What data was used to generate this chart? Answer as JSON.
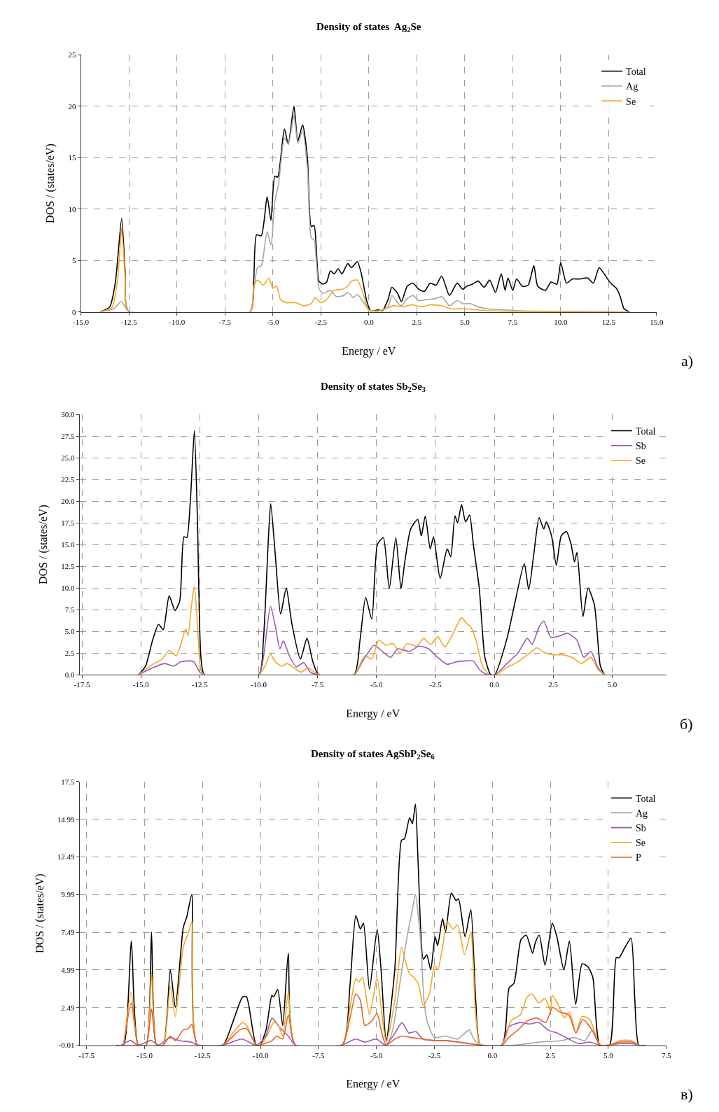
{
  "chart_data": [
    {
      "type": "line",
      "title": "Density of states  Ag$_{2}$Se",
      "xlabel": "Energy / eV",
      "ylabel": "DOS / (states/eV)",
      "annotations": [
        "а)"
      ],
      "grid": true,
      "legend": "top right",
      "xlim": [
        -15,
        15
      ],
      "xticks": [
        {
          "value": -15,
          "label": "-15.0"
        },
        {
          "value": -12.5,
          "label": "-12.5"
        },
        {
          "value": -10,
          "label": "-10.0"
        },
        {
          "value": -7.5,
          "label": "-7.5"
        },
        {
          "value": -5,
          "label": "-5.0"
        },
        {
          "value": -2.5,
          "label": "-2.5"
        },
        {
          "value": 0,
          "label": "0.0"
        },
        {
          "value": 2.5,
          "label": "2.5"
        },
        {
          "value": 5,
          "label": "5.0"
        },
        {
          "value": 7.5,
          "label": "7.5"
        },
        {
          "value": 10,
          "label": "10.0"
        },
        {
          "value": 12.5,
          "label": "12.5"
        },
        {
          "value": 15,
          "label": "15.0"
        }
      ],
      "ylim": [
        0,
        25
      ],
      "yticks": [
        0,
        5,
        10,
        15,
        20,
        25
      ],
      "series": [
        {
          "name": "Total",
          "color": "#000000",
          "x": [
            -14,
            -13.5,
            -13.2,
            -12.88,
            -12.7,
            -12.5,
            -6.2,
            -6.0,
            -5.85,
            -5.6,
            -5.3,
            -5.1,
            -4.9,
            -4.75,
            -4.4,
            -4.2,
            -3.9,
            -3.7,
            -3.45,
            -3.2,
            -3.0,
            -2.85,
            -2.6,
            -2.4,
            -2.2,
            -2.0,
            -1.8,
            -1.6,
            -1.4,
            -1.1,
            -0.9,
            -0.6,
            -0.4,
            -0.1,
            0.1,
            0.5,
            0.7,
            1.0,
            1.2,
            1.5,
            1.7,
            2.0,
            2.3,
            2.6,
            2.9,
            3.2,
            3.5,
            3.8,
            4.2,
            4.6,
            4.9,
            5.1,
            5.4,
            5.7,
            6.0,
            6.3,
            6.6,
            6.9,
            7.1,
            7.25,
            7.5,
            7.7,
            8.0,
            8.3,
            8.6,
            8.8,
            9.2,
            9.5,
            9.8,
            10.0,
            10.3,
            10.6,
            11.0,
            11.4,
            11.7,
            12.0,
            12.3,
            12.6,
            12.9,
            13.1,
            13.3,
            13.6
          ],
          "values": [
            0,
            0.5,
            3,
            9.1,
            4,
            0,
            0,
            3,
            7.5,
            7.4,
            11.2,
            8.9,
            13.2,
            13.1,
            17.8,
            16.3,
            20,
            16.6,
            18.2,
            15,
            8.3,
            8.4,
            3,
            2.7,
            2.9,
            4.0,
            3.7,
            4.2,
            3.7,
            4.7,
            4.3,
            4.9,
            3.8,
            1,
            0.1,
            0.2,
            0.1,
            1.2,
            2.4,
            1.8,
            1.0,
            2.5,
            2.8,
            2.2,
            2.0,
            2.8,
            2.6,
            3.5,
            1.6,
            2.8,
            2.2,
            2.5,
            2.7,
            3.0,
            2.4,
            3.1,
            1.9,
            3.7,
            2.1,
            3.3,
            2.1,
            3.2,
            2.5,
            2.6,
            4.5,
            2.5,
            2.1,
            2.9,
            2.7,
            4.8,
            2.8,
            3.2,
            3.2,
            3.3,
            2.8,
            4.3,
            3.6,
            2.8,
            2.3,
            1.5,
            0.3,
            0
          ]
        },
        {
          "name": "Ag",
          "color": "#a6a6a6",
          "x": [
            -14,
            -13.3,
            -12.9,
            -12.6,
            -12.4,
            -6.2,
            -6.0,
            -5.8,
            -5.6,
            -5.3,
            -5.1,
            -4.9,
            -4.7,
            -4.4,
            -4.2,
            -3.9,
            -3.7,
            -3.45,
            -3.2,
            -3.0,
            -2.85,
            -2.6,
            -2.4,
            -2.0,
            -1.7,
            -1.3,
            -1.1,
            -0.8,
            -0.6,
            -0.3,
            0,
            0.5,
            1.0,
            1.2,
            1.5,
            1.7,
            2.0,
            2.3,
            2.6,
            3.0,
            3.5,
            3.8,
            4.2,
            4.6,
            4.9,
            5.3,
            5.7,
            6.2,
            7.0,
            8.0,
            10,
            13.6
          ],
          "values": [
            0,
            0.3,
            1.0,
            0.2,
            0,
            0,
            2,
            4.3,
            4.5,
            7.8,
            6.5,
            10.7,
            12.5,
            16.9,
            16.3,
            19.1,
            16.4,
            17.6,
            14,
            7.2,
            7.0,
            2.3,
            1.8,
            2.1,
            1.5,
            1.6,
            1.9,
            1.4,
            1.7,
            1.0,
            0.2,
            0.1,
            0.5,
            1.6,
            0.9,
            0.6,
            1.3,
            1.6,
            1.1,
            1.2,
            1.3,
            1.5,
            0.6,
            1.1,
            0.8,
            0.8,
            0.5,
            0.3,
            0.2,
            0.1,
            0.05,
            0
          ]
        },
        {
          "name": "Se",
          "color": "#f5a623",
          "x": [
            -14,
            -13.4,
            -13.1,
            -12.88,
            -12.7,
            -12.5,
            -6.2,
            -6.0,
            -5.8,
            -5.5,
            -5.2,
            -5.0,
            -4.8,
            -4.6,
            -4.3,
            -3.8,
            -3.4,
            -3.0,
            -2.8,
            -2.5,
            -2.2,
            -1.8,
            -1.4,
            -1.1,
            -0.9,
            -0.6,
            -0.3,
            0,
            0.5,
            1.0,
            1.3,
            1.8,
            2.2,
            2.8,
            3.2,
            3.8,
            4.3,
            5,
            6,
            7.5,
            13.6
          ],
          "values": [
            0,
            0.4,
            3,
            8.1,
            3.5,
            0,
            0,
            2.5,
            3.1,
            2.6,
            3.3,
            2.3,
            2.5,
            1.2,
            0.9,
            0.9,
            0.6,
            0.8,
            1.4,
            0.9,
            1.2,
            2.1,
            2.2,
            2.5,
            3.0,
            3.1,
            1.8,
            0.2,
            0.05,
            0.4,
            0.6,
            0.5,
            0.7,
            0.5,
            0.7,
            0.6,
            0.3,
            0.3,
            0.15,
            0.05,
            0
          ]
        }
      ]
    },
    {
      "type": "line",
      "title": "Density of states Sb$_{2}$Se$_{3}$",
      "xlabel": "Energy / eV",
      "ylabel": "DOS / (states/eV)",
      "annotations": [
        "б)"
      ],
      "grid": true,
      "legend": "top right",
      "xlim": [
        -17.6,
        7.3
      ],
      "xticks": [
        {
          "value": -17.5,
          "label": "-17.5"
        },
        {
          "value": -15,
          "label": "-15.0"
        },
        {
          "value": -12.5,
          "label": "-12.5"
        },
        {
          "value": -10,
          "label": "-10.0"
        },
        {
          "value": -7.5,
          "label": "-7.5"
        },
        {
          "value": -5,
          "label": "-5.0"
        },
        {
          "value": -2.5,
          "label": "-2.5"
        },
        {
          "value": 0,
          "label": "0.0"
        },
        {
          "value": 2.5,
          "label": "2.5"
        },
        {
          "value": 5,
          "label": "5.0"
        }
      ],
      "ylim": [
        0,
        30
      ],
      "yticks": [
        {
          "value": 0,
          "label": "0.0"
        },
        {
          "value": 2.5,
          "label": "2.5"
        },
        {
          "value": 5,
          "label": "5.0"
        },
        {
          "value": 7.5,
          "label": "7.5"
        },
        {
          "value": 10,
          "label": "10.0"
        },
        {
          "value": 12.5,
          "label": "12.5"
        },
        {
          "value": 15,
          "label": "15.0"
        },
        {
          "value": 17.5,
          "label": "17.5"
        },
        {
          "value": 20,
          "label": "20.0"
        },
        {
          "value": 22.5,
          "label": "22.5"
        },
        {
          "value": 25,
          "label": "25.0"
        },
        {
          "value": 27.5,
          "label": "27.5"
        },
        {
          "value": 30,
          "label": "30.0"
        }
      ],
      "series": [
        {
          "name": "Total",
          "color": "#000000",
          "x": [
            -15.1,
            -14.8,
            -14.5,
            -14.25,
            -14.05,
            -13.8,
            -13.55,
            -13.35,
            -13.17,
            -13.05,
            -12.9,
            -12.73,
            -12.6,
            -12.45,
            -12.3,
            -10.0,
            -9.8,
            -9.6,
            -9.49,
            -9.3,
            -9.07,
            -8.83,
            -8.6,
            -8.23,
            -7.95,
            -7.7,
            -7.45,
            -5.95,
            -5.7,
            -5.46,
            -5.2,
            -4.96,
            -4.71,
            -4.46,
            -4.18,
            -3.96,
            -3.8,
            -3.55,
            -3.25,
            -3.1,
            -2.93,
            -2.72,
            -2.58,
            -2.3,
            -2.0,
            -1.85,
            -1.67,
            -1.56,
            -1.39,
            -1.22,
            -1.05,
            -0.89,
            -0.64,
            -0.4,
            -0.15,
            0.02,
            0.52,
            0.85,
            1.27,
            1.46,
            1.68,
            1.9,
            2.1,
            2.21,
            2.43,
            2.63,
            2.84,
            3.06,
            3.26,
            3.4,
            3.51,
            3.76,
            3.98,
            4.25,
            4.5,
            4.67
          ],
          "values": [
            0,
            1,
            4,
            5.8,
            5.2,
            9.1,
            7.4,
            8.5,
            15.9,
            15.8,
            20,
            28.1,
            18,
            2,
            0,
            0,
            4,
            15,
            19.7,
            14,
            7,
            10,
            6,
            1.8,
            4.2,
            1.5,
            0,
            0,
            4,
            8.9,
            6.4,
            15,
            15.8,
            9.9,
            15.8,
            9.9,
            13,
            16.8,
            17.9,
            16.0,
            18.3,
            14.5,
            15.9,
            11.1,
            14.5,
            13.6,
            18.3,
            17.5,
            19.6,
            17.6,
            18.4,
            15,
            10,
            2,
            0,
            0,
            4,
            8,
            12.8,
            9.8,
            14,
            18.1,
            16.8,
            17.6,
            16,
            12.6,
            16,
            16.5,
            15,
            13,
            14.1,
            6.7,
            10,
            8,
            1,
            0
          ]
        },
        {
          "name": "Sb",
          "color": "#9b59b6",
          "x": [
            -15.1,
            -14.5,
            -14.0,
            -13.6,
            -13.3,
            -12.9,
            -12.75,
            -12.5,
            -12.3,
            -10,
            -9.8,
            -9.5,
            -9.3,
            -9.1,
            -8.95,
            -8.7,
            -8.4,
            -8.1,
            -7.8,
            -7.45,
            -5.95,
            -5.6,
            -5.1,
            -4.8,
            -4.4,
            -4.1,
            -3.6,
            -3.2,
            -2.8,
            -2.4,
            -2.0,
            -1.6,
            -1.2,
            -0.9,
            -0.6,
            -0.3,
            0.05,
            0.5,
            1.0,
            1.4,
            1.6,
            1.9,
            2.1,
            2.4,
            2.8,
            3.1,
            3.5,
            3.8,
            4.1,
            4.4,
            4.67
          ],
          "values": [
            0,
            0.8,
            1.3,
            1.0,
            1.5,
            1.6,
            1.5,
            0.3,
            0,
            0,
            2,
            7.9,
            5.7,
            3,
            3.9,
            2.2,
            0.9,
            1.4,
            0.3,
            0,
            0,
            1.5,
            3.4,
            2.8,
            2.0,
            3,
            2.7,
            3.3,
            3.0,
            2.0,
            1.2,
            1.5,
            1.6,
            1.6,
            0.5,
            0,
            0,
            1.2,
            2.5,
            4.2,
            3.5,
            5.5,
            6.2,
            4.3,
            4.5,
            4.8,
            4.0,
            2.0,
            2.7,
            0.8,
            0
          ]
        },
        {
          "name": "Se",
          "color": "#f5a623",
          "x": [
            -15.1,
            -14.5,
            -14.1,
            -13.8,
            -13.5,
            -13.3,
            -13.1,
            -13.0,
            -12.85,
            -12.73,
            -12.6,
            -12.45,
            -12.3,
            -10,
            -9.7,
            -9.5,
            -9.3,
            -9.0,
            -8.8,
            -8.5,
            -8.2,
            -7.9,
            -7.45,
            -5.95,
            -5.5,
            -5.2,
            -4.9,
            -4.6,
            -4.3,
            -4.0,
            -3.7,
            -3.3,
            -3.0,
            -2.7,
            -2.4,
            -2.1,
            -1.8,
            -1.55,
            -1.4,
            -1.2,
            -1.0,
            -0.8,
            -0.5,
            -0.2,
            0.05,
            0.5,
            1.0,
            1.5,
            1.8,
            2.1,
            2.5,
            2.9,
            3.3,
            3.7,
            4.1,
            4.4,
            4.67
          ],
          "values": [
            0,
            1.2,
            1.8,
            2.8,
            2.2,
            3.5,
            5.3,
            4.5,
            8,
            10.2,
            6,
            0.5,
            0,
            0,
            1.2,
            2.4,
            1.5,
            1.0,
            1.3,
            0.8,
            0.3,
            0.8,
            0,
            0,
            2.2,
            1.8,
            4.0,
            3.4,
            3.6,
            2.5,
            3.6,
            3.3,
            4.2,
            3.5,
            4.4,
            3.2,
            4.5,
            5.9,
            6.6,
            6.0,
            5.5,
            4.2,
            1,
            0,
            0,
            0.8,
            1.5,
            2.5,
            3.1,
            2.6,
            2.3,
            2.3,
            2.0,
            1.3,
            2.0,
            0.6,
            0
          ]
        }
      ]
    },
    {
      "type": "line",
      "title": "Density of states AgSbP$_{2}$Se$_{6}$",
      "xlabel": "Energy / eV",
      "ylabel": "DOS / (states/eV)",
      "annotations": [
        "в)"
      ],
      "grid": true,
      "legend": "top right",
      "xlim": [
        -17.8,
        7.5
      ],
      "xticks": [
        {
          "value": -17.5,
          "label": "-17.5"
        },
        {
          "value": -15,
          "label": "-15.0"
        },
        {
          "value": -12.5,
          "label": "-12.5"
        },
        {
          "value": -10,
          "label": "-10.0"
        },
        {
          "value": -7.5,
          "label": "-7.5"
        },
        {
          "value": -5,
          "label": "-5.0"
        },
        {
          "value": -2.5,
          "label": "-2.5"
        },
        {
          "value": 0,
          "label": "0.0"
        },
        {
          "value": 2.5,
          "label": "2.5"
        },
        {
          "value": 5,
          "label": "5.0"
        },
        {
          "value": 7.5,
          "label": "7.5"
        }
      ],
      "ylim": [
        -0.01,
        17.5
      ],
      "yticks": [
        -0.01,
        2.49,
        4.99,
        7.49,
        9.99,
        12.49,
        14.99,
        17.5
      ],
      "series": [
        {
          "name": "Total",
          "color": "#000000",
          "x": [
            -16.2,
            -15.9,
            -15.57,
            -15.27,
            -14.93,
            -14.7,
            -14.48,
            -14.19,
            -13.89,
            -13.67,
            -13.33,
            -13.18,
            -12.96,
            -12.71,
            -11.62,
            -11.2,
            -10.77,
            -10.6,
            -10.19,
            -10.02,
            -9.76,
            -9.51,
            -9.43,
            -9.26,
            -9.04,
            -8.8,
            -8.5,
            -6.48,
            -6.14,
            -5.89,
            -5.69,
            -5.56,
            -5.3,
            -4.97,
            -4.8,
            -4.58,
            -4.21,
            -3.92,
            -3.79,
            -3.57,
            -3.45,
            -3.32,
            -3.2,
            -2.98,
            -2.83,
            -2.66,
            -2.47,
            -2.36,
            -2.15,
            -2.02,
            -1.77,
            -1.57,
            -1.46,
            -1.18,
            -0.93,
            -0.72,
            -0.51,
            0.42,
            0.72,
            0.93,
            1.23,
            1.46,
            1.73,
            1.85,
            2.02,
            2.27,
            2.58,
            2.78,
            3.08,
            3.32,
            3.59,
            3.87,
            4.12,
            4.33,
            4.63,
            5.05,
            5.34,
            5.47,
            5.72,
            5.98,
            6.14,
            6.31,
            6.6
          ],
          "values": [
            -0.01,
            0,
            6.9,
            0,
            0,
            7.5,
            0,
            0,
            5.0,
            2.5,
            7.8,
            8.5,
            9.99,
            0,
            0,
            1.5,
            3.2,
            3.2,
            0,
            0,
            1,
            3.3,
            3.2,
            3.7,
            1.3,
            6.1,
            0,
            0,
            4,
            8.6,
            7.7,
            8.1,
            3.7,
            7.7,
            5,
            0.3,
            5,
            13.6,
            13.7,
            15.1,
            14.7,
            16.0,
            12,
            5.7,
            6.0,
            5.0,
            7.2,
            6.6,
            8.4,
            7.5,
            10.1,
            9.6,
            9.7,
            7.2,
            9.0,
            3,
            0,
            0,
            3.8,
            4.1,
            7.0,
            7.3,
            6.1,
            6.8,
            7.3,
            5.3,
            8.1,
            7.2,
            5.0,
            6.9,
            2.7,
            5.4,
            5.2,
            4.5,
            0,
            0,
            5.8,
            5.8,
            6.5,
            7.1,
            3,
            0,
            -0.01
          ]
        },
        {
          "name": "Ag",
          "color": "#a6a6a6",
          "x": [
            -16,
            -4.58,
            -4.3,
            -4.0,
            -3.7,
            -3.45,
            -3.32,
            -3.1,
            -2.95,
            -2.8,
            -2.5,
            -2.0,
            -1.5,
            -1.0,
            -0.8,
            -0.5,
            1.0,
            2.0,
            3.0,
            3.5,
            4.0,
            4.3,
            4.5,
            4.63
          ],
          "values": [
            0,
            0,
            1,
            4,
            7,
            9,
            9.99,
            7,
            3,
            1.5,
            0.5,
            0.6,
            0.4,
            1.0,
            0.4,
            0,
            0,
            0.2,
            0.3,
            0.5,
            0.3,
            1.0,
            0.4,
            0
          ]
        },
        {
          "name": "Sb",
          "color": "#9b59b6",
          "x": [
            -16,
            -15.6,
            -15.3,
            -14.7,
            -14.4,
            -13.9,
            -13.5,
            -13.0,
            -12.7,
            -11.6,
            -10.8,
            -10.2,
            -9.8,
            -9.5,
            -9.2,
            -8.8,
            -8.5,
            -6.5,
            -5.9,
            -5.5,
            -5.0,
            -4.6,
            -4.2,
            -3.9,
            -3.6,
            -3.3,
            -3.0,
            -2.5,
            -2.0,
            -1.5,
            -1,
            -0.5,
            0.4,
            0.7,
            1.2,
            1.6,
            2.0,
            2.4,
            2.8,
            3.3,
            3.7,
            4.2,
            4.63,
            5.05,
            5.5,
            6.0,
            6.31
          ],
          "values": [
            0,
            0.3,
            0,
            0.3,
            0,
            0.5,
            0.3,
            0.2,
            0,
            0,
            0.4,
            0,
            0.5,
            1.8,
            1.2,
            0.6,
            0,
            0,
            0.4,
            0.2,
            0.4,
            0,
            0.8,
            1.5,
            0.8,
            0.9,
            0.4,
            0.3,
            0.3,
            0.2,
            0.1,
            0,
            0,
            1.2,
            1.5,
            1.4,
            1.5,
            1.0,
            0.8,
            0.4,
            0.1,
            0.2,
            0,
            0,
            0.1,
            0.1,
            0
          ]
        },
        {
          "name": "Se",
          "color": "#f5a623",
          "x": [
            -15.9,
            -15.57,
            -15.27,
            -14.93,
            -14.7,
            -14.48,
            -14.19,
            -13.89,
            -13.67,
            -13.33,
            -13.1,
            -12.96,
            -12.71,
            -11.62,
            -11.2,
            -10.77,
            -10.6,
            -10.19,
            -10.02,
            -9.76,
            -9.43,
            -9.26,
            -9.04,
            -8.8,
            -8.5,
            -6.48,
            -6.14,
            -5.89,
            -5.75,
            -5.6,
            -5.3,
            -4.97,
            -4.8,
            -4.58,
            -4.2,
            -3.92,
            -3.6,
            -3.4,
            -3.2,
            -2.98,
            -2.7,
            -2.5,
            -2.36,
            -2.15,
            -1.95,
            -1.7,
            -1.5,
            -1.2,
            -0.93,
            -0.72,
            -0.51,
            0.42,
            0.8,
            1.2,
            1.5,
            1.7,
            2.0,
            2.27,
            2.5,
            2.58,
            2.8,
            3.1,
            3.32,
            3.6,
            3.87,
            4.2,
            4.63,
            5.05,
            5.5,
            6.0,
            6.31
          ],
          "values": [
            0,
            3.5,
            0,
            0,
            4.8,
            0,
            0,
            3.9,
            1.9,
            6.5,
            7.5,
            8.2,
            0,
            0,
            0.8,
            1.5,
            1.3,
            0,
            0,
            0.5,
            1.5,
            1.4,
            0.6,
            3.5,
            0,
            0,
            2.5,
            4.4,
            4.2,
            4.5,
            2.0,
            4.5,
            2.5,
            0.2,
            3,
            6.5,
            4.8,
            4.5,
            4.1,
            2.6,
            3.5,
            5.3,
            5.0,
            6.5,
            8.2,
            7.7,
            8.0,
            6.0,
            7.5,
            2,
            0,
            0,
            1.6,
            2.0,
            3.2,
            3.4,
            2.8,
            3.1,
            2.3,
            3.3,
            2.8,
            1.8,
            2.2,
            0.8,
            1.9,
            1.7,
            0,
            0,
            0.3,
            0.3,
            0
          ]
        },
        {
          "name": "P",
          "color": "#e8642a",
          "x": [
            -15.9,
            -15.57,
            -15.27,
            -14.93,
            -14.7,
            -14.48,
            -14.19,
            -13.89,
            -13.67,
            -13.33,
            -13.1,
            -12.96,
            -12.71,
            -11.62,
            -10.9,
            -10.6,
            -10.19,
            -10.02,
            -9.5,
            -9.3,
            -9.04,
            -8.8,
            -8.5,
            -6.48,
            -6.14,
            -5.89,
            -5.7,
            -5.5,
            -5.2,
            -4.97,
            -4.8,
            -4.58,
            -4.2,
            -3.9,
            -3.5,
            -3.0,
            -2.5,
            -2.0,
            -1.5,
            -1,
            -0.51,
            0.42,
            0.7,
            1.1,
            1.5,
            1.9,
            2.3,
            2.6,
            2.9,
            3.3,
            3.6,
            3.9,
            4.3,
            4.63,
            5.05,
            5.5,
            6,
            6.31
          ],
          "values": [
            0,
            2.8,
            0,
            0,
            2.4,
            0,
            0,
            0.6,
            0.3,
            1.0,
            1.1,
            1.4,
            0,
            0,
            1.0,
            1.1,
            0,
            0,
            0.3,
            0.6,
            0.4,
            2.0,
            0,
            0,
            1.8,
            3.4,
            3.0,
            1.3,
            1.6,
            2.1,
            1.0,
            0,
            0.4,
            0.6,
            0.5,
            0.4,
            0.3,
            0.3,
            0.2,
            0.1,
            0,
            0,
            0.5,
            1.0,
            1.6,
            1.8,
            1.5,
            2.5,
            2.2,
            2.0,
            0.8,
            1.7,
            1.0,
            0,
            0,
            0.2,
            0.2,
            0
          ]
        }
      ]
    }
  ]
}
